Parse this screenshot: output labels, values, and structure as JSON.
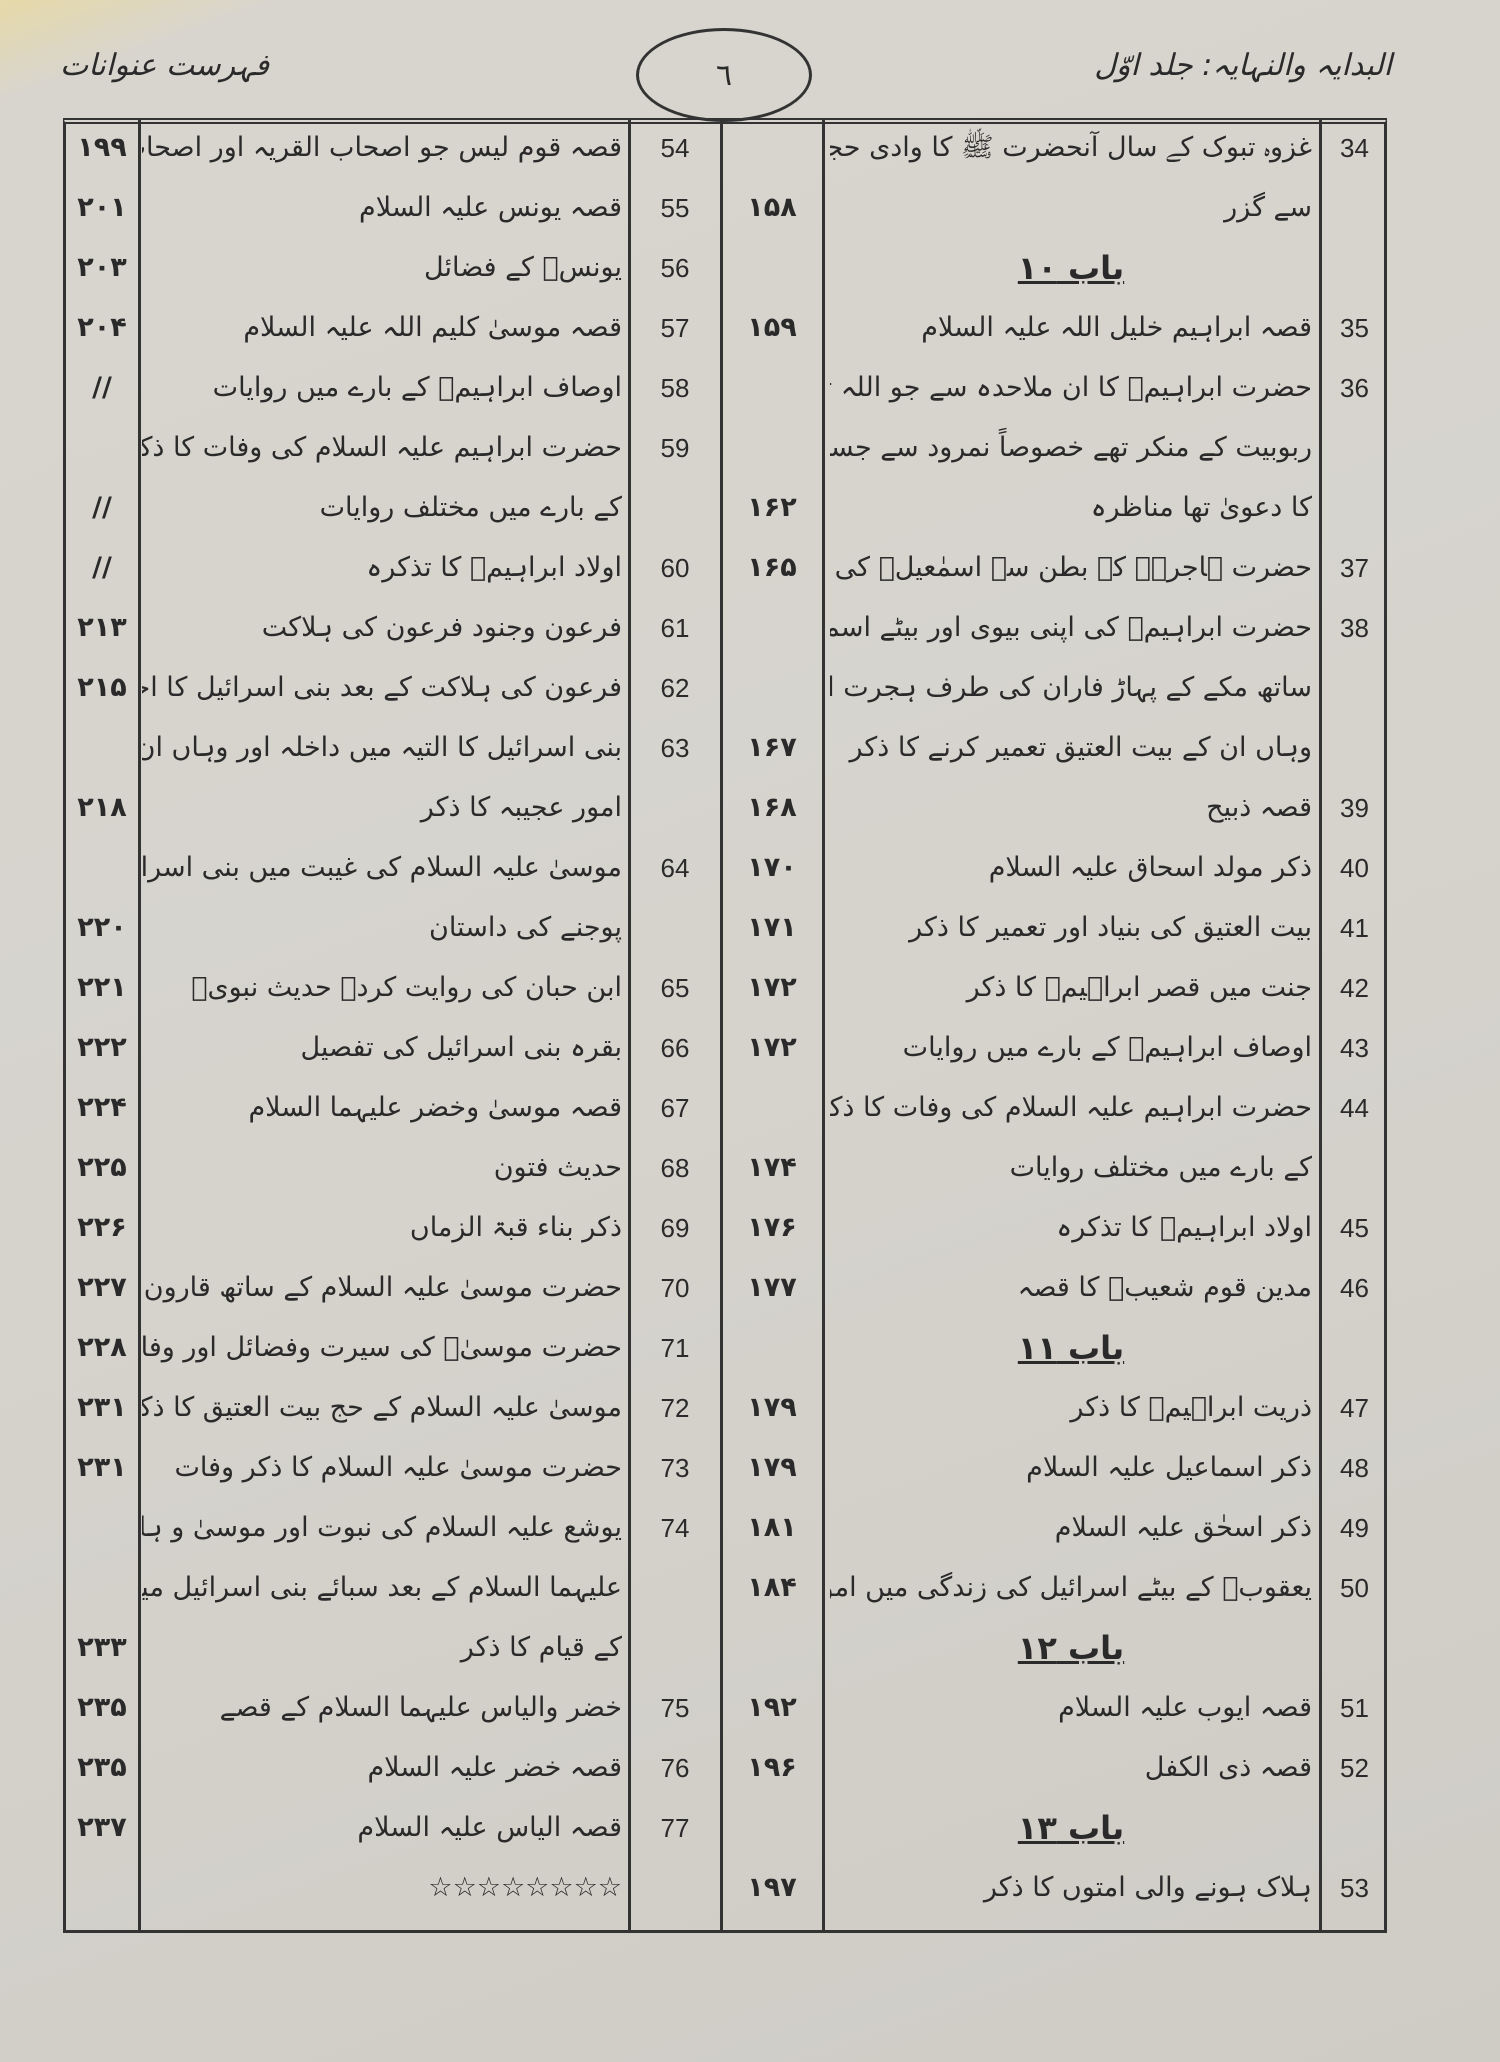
{
  "header": {
    "book_title": "البدایہ والنہایہ: جلد اوّل",
    "section_title": "فہرست عنوانات",
    "page_number": "٦"
  },
  "right_column": [
    {
      "num": "34",
      "text": "غزوہ تبوک کے سال آنحضرت ﷺ کا وادی حجر",
      "page": ""
    },
    {
      "num": "",
      "text": "سے گزر",
      "page": "۱۵۸"
    },
    {
      "heading": "باب ۱۰"
    },
    {
      "num": "35",
      "text": "قصہ ابراہیم خلیل اللہ علیہ السلام",
      "page": "۱۵۹"
    },
    {
      "num": "36",
      "text": "حضرت ابراہیمؑ کا ان ملاحدہ سے جو اللہ تعالیٰ کی",
      "page": ""
    },
    {
      "num": "",
      "text": "ربوبیت کے منکر تھے خصوصاً نمرود سے جسے خدائی",
      "page": ""
    },
    {
      "num": "",
      "text": "کا دعویٰ تھا مناظرہ",
      "page": "۱۶۲"
    },
    {
      "num": "37",
      "text": "حضرت ہاجرہؑ کے بطن سے اسمٰعیلؑ کی ولادت",
      "page": "۱۶۵"
    },
    {
      "num": "38",
      "text": "حضرت ابراہیمؑ کی اپنی بیوی اور بیٹے اسماعیلؑ کے",
      "page": ""
    },
    {
      "num": "",
      "text": "ساتھ مکے کے پہاڑ فاران کی طرف ہجرت اور",
      "page": ""
    },
    {
      "num": "",
      "text": "وہاں ان کے بیت العتیق تعمیر کرنے کا ذکر",
      "page": "۱۶۷"
    },
    {
      "num": "39",
      "text": "قصہ ذبیح",
      "page": "۱۶۸"
    },
    {
      "num": "40",
      "text": "ذکر مولد اسحاق علیہ السلام",
      "page": "۱۷۰"
    },
    {
      "num": "41",
      "text": "بیت العتیق کی بنیاد اور تعمیر کا ذکر",
      "page": "۱۷۱"
    },
    {
      "num": "42",
      "text": "جنت میں قصر ابراہیمؑ کا ذکر",
      "page": "۱۷۲"
    },
    {
      "num": "43",
      "text": "اوصاف ابراہیمؑ کے بارے میں روایات",
      "page": "۱۷۲"
    },
    {
      "num": "44",
      "text": "حضرت ابراہیم علیہ السلام کی وفات کا ذکر اور ان کی عمر",
      "page": ""
    },
    {
      "num": "",
      "text": "کے بارے میں مختلف روایات",
      "page": "۱۷۴"
    },
    {
      "num": "45",
      "text": "اولاد ابراہیمؑ کا تذکرہ",
      "page": "۱۷۶"
    },
    {
      "num": "46",
      "text": "مدین قوم شعیبؑ کا قصہ",
      "page": "۱۷۷"
    },
    {
      "heading": "باب ۱۱"
    },
    {
      "num": "47",
      "text": "ذریت ابراہیمؑ کا ذکر",
      "page": "۱۷۹"
    },
    {
      "num": "48",
      "text": "ذکر اسماعیل علیہ السلام",
      "page": "۱۷۹"
    },
    {
      "num": "49",
      "text": "ذکر اسحٰق علیہ السلام",
      "page": "۱۸۱"
    },
    {
      "num": "50",
      "text": "یعقوبؑ کے بیٹے اسرائیل کی زندگی میں امور عجیبہ کا ذکر",
      "page": "۱۸۴"
    },
    {
      "heading": "باب ۱۲"
    },
    {
      "num": "51",
      "text": "قصہ ایوب علیہ السلام",
      "page": "۱۹۲"
    },
    {
      "num": "52",
      "text": "قصہ ذی الکفل",
      "page": "۱۹۶"
    },
    {
      "heading": "باب ۱۳"
    },
    {
      "num": "53",
      "text": "ہلاک ہونے والی امتوں کا ذکر",
      "page": "۱۹۷"
    }
  ],
  "left_column": [
    {
      "num": "54",
      "text": "قصہ قوم لیس جو اصحاب القریہ اور اصحاب یٰسین تھے",
      "page": "۱۹۹"
    },
    {
      "num": "55",
      "text": "قصہ یونس علیہ السلام",
      "page": "۲۰۱"
    },
    {
      "num": "56",
      "text": "یونسؑ کے فضائل",
      "page": "۲۰۳"
    },
    {
      "num": "57",
      "text": "قصہ موسیٰ کلیم اللہ علیہ السلام",
      "page": "۲۰۴"
    },
    {
      "num": "58",
      "text": "اوصاف ابراہیمؑ کے بارے میں روایات",
      "page": "//"
    },
    {
      "num": "59",
      "text": "حضرت ابراہیم علیہ السلام کی وفات کا ذکر اور ان کی عمر",
      "page": ""
    },
    {
      "num": "",
      "text": "کے بارے میں مختلف روایات",
      "page": "//"
    },
    {
      "num": "60",
      "text": "اولاد ابراہیمؑ کا تذکرہ",
      "page": "//"
    },
    {
      "num": "61",
      "text": "فرعون وجنود فرعون کی ہلاکت",
      "page": "۲۱۳"
    },
    {
      "num": "62",
      "text": "فرعون کی ہلاکت کے بعد بنی اسرائیل کا احوال",
      "page": "۲۱۵"
    },
    {
      "num": "63",
      "text": "بنی اسرائیل کا التیہ میں داخلہ اور وہاں ان کے لیے",
      "page": ""
    },
    {
      "num": "",
      "text": "امور عجیبہ کا ذکر",
      "page": "۲۱۸"
    },
    {
      "num": "64",
      "text": "موسیٰ علیہ السلام کی غیبت میں بنی اسرائیل کی بچھڑا",
      "page": ""
    },
    {
      "num": "",
      "text": "پوجنے کی داستان",
      "page": "۲۲۰"
    },
    {
      "num": "65",
      "text": "ابن حبان کی روایت کردہ حدیث نبویؐ",
      "page": "۲۲۱"
    },
    {
      "num": "66",
      "text": "بقرہ بنی اسرائیل کی تفصیل",
      "page": "۲۲۲"
    },
    {
      "num": "67",
      "text": "قصہ موسیٰ وخضر علیہما السلام",
      "page": "۲۲۴"
    },
    {
      "num": "68",
      "text": "حدیث فتون",
      "page": "۲۲۵"
    },
    {
      "num": "69",
      "text": "ذکر بناء قبۃ الزماں",
      "page": "۲۲۶"
    },
    {
      "num": "70",
      "text": "حضرت موسیٰ علیہ السلام کے ساتھ قارون کا قصہ",
      "page": "۲۲۷"
    },
    {
      "num": "71",
      "text": "حضرت موسیٰؑ کی سیرت وفضائل اور وفات کا ذکر",
      "page": "۲۲۸"
    },
    {
      "num": "72",
      "text": "موسیٰ علیہ السلام کے حج بیت العتیق کا ذکر",
      "page": "۲۳۱"
    },
    {
      "num": "73",
      "text": "حضرت موسیٰ علیہ السلام کا ذکر وفات",
      "page": "۲۳۱"
    },
    {
      "num": "74",
      "text": "یوشع علیہ السلام کی نبوت اور موسیٰ و ہارون",
      "page": ""
    },
    {
      "num": "",
      "text": "علیہما السلام کے بعد سبائے بنی اسرائیل میں ان",
      "page": ""
    },
    {
      "num": "",
      "text": "کے قیام کا ذکر",
      "page": "۲۳۳"
    },
    {
      "num": "75",
      "text": "خضر والیاس علیہما السلام کے قصے",
      "page": "۲۳۵"
    },
    {
      "num": "76",
      "text": "قصہ خضر علیہ السلام",
      "page": "۲۳۵"
    },
    {
      "num": "77",
      "text": "قصہ الیاس علیہ السلام",
      "page": "۲۳۷"
    },
    {
      "num": "",
      "text": "☆☆☆☆☆☆☆☆",
      "page": ""
    }
  ]
}
